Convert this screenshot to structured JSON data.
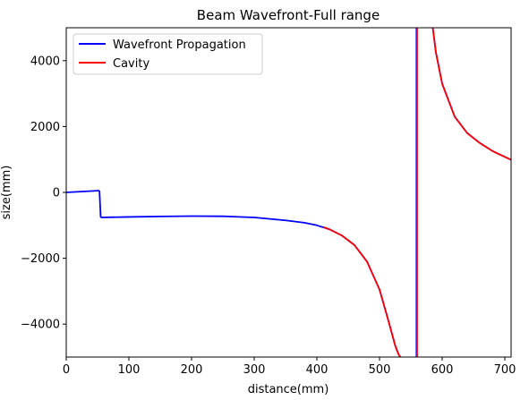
{
  "chart_data": {
    "type": "line",
    "title": "Beam Wavefront-Full range",
    "xlabel": "distance(mm)",
    "ylabel": "size(mm)",
    "xlim": [
      0,
      710
    ],
    "ylim": [
      -5000,
      5000
    ],
    "xticks": [
      0,
      100,
      200,
      300,
      400,
      500,
      600,
      700
    ],
    "yticks": [
      -4000,
      -2000,
      0,
      2000,
      4000
    ],
    "xtick_labels": [
      "0",
      "100",
      "200",
      "300",
      "400",
      "500",
      "600",
      "700"
    ],
    "ytick_labels": [
      "−4000",
      "−2000",
      "0",
      "2000",
      "4000"
    ],
    "grid": false,
    "legend_position": "top-left",
    "series": [
      {
        "name": "Wavefront Propagation",
        "color": "#0000ff",
        "segments": [
          {
            "x": [
              0,
              20,
              40,
              53
            ],
            "y": [
              0,
              20,
              40,
              55
            ]
          },
          {
            "x": [
              53,
              55
            ],
            "y": [
              55,
              -760
            ]
          },
          {
            "x": [
              55,
              100,
              150,
              200,
              250,
              300,
              350,
              380,
              400,
              420,
              440,
              460,
              480,
              500,
              515,
              525,
              530,
              533
            ],
            "y": [
              -760,
              -745,
              -730,
              -720,
              -725,
              -760,
              -850,
              -920,
              -1000,
              -1120,
              -1310,
              -1600,
              -2100,
              -2950,
              -3950,
              -4650,
              -4900,
              -5000
            ]
          },
          {
            "x": [
              559,
              559
            ],
            "y": [
              -5000,
              5000
            ]
          },
          {
            "x": [
              585,
              590,
              600,
              620,
              640,
              660,
              680,
              700,
              710
            ],
            "y": [
              5000,
              4250,
              3300,
              2300,
              1800,
              1500,
              1260,
              1080,
              990
            ]
          }
        ]
      },
      {
        "name": "Cavity",
        "color": "#ff0000",
        "segments": [
          {
            "x": [
              410,
              420,
              440,
              460,
              480,
              500,
              515,
              525,
              530,
              533
            ],
            "y": [
              -1050,
              -1120,
              -1310,
              -1600,
              -2100,
              -2950,
              -3950,
              -4650,
              -4900,
              -5000
            ]
          },
          {
            "x": [
              560,
              560
            ],
            "y": [
              -5000,
              5000
            ]
          },
          {
            "x": [
              585,
              590,
              600,
              620,
              640,
              660,
              680,
              700,
              710
            ],
            "y": [
              5000,
              4250,
              3300,
              2300,
              1800,
              1500,
              1260,
              1080,
              990
            ]
          }
        ]
      }
    ]
  }
}
